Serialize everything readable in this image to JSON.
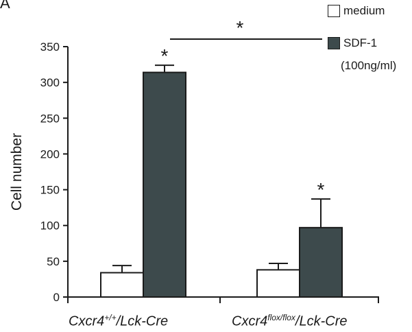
{
  "panel_label": "A",
  "chart_data": {
    "type": "bar",
    "ylabel": "Cell number",
    "ylim": [
      0,
      350
    ],
    "yticks": [
      0,
      50,
      100,
      150,
      200,
      250,
      300,
      350
    ],
    "categories": [
      {
        "base": "Cxcr4",
        "sup": "+/+",
        "suffix": "/Lck-Cre"
      },
      {
        "base": "Cxcr4",
        "sup": "flox/flox",
        "suffix": "/Lck-Cre"
      }
    ],
    "series": [
      {
        "name": "medium",
        "color": "#ffffff",
        "values": [
          34,
          38
        ],
        "errors": [
          10,
          9
        ]
      },
      {
        "name": "SDF-1",
        "color": "#3d4a4c",
        "values": [
          314,
          97
        ],
        "errors": [
          10,
          40
        ]
      }
    ],
    "legend": {
      "medium": "medium",
      "sdf": "SDF-1",
      "sdf_note": "(100ng/ml)"
    },
    "annotations": [
      "*",
      "*",
      "*"
    ]
  }
}
